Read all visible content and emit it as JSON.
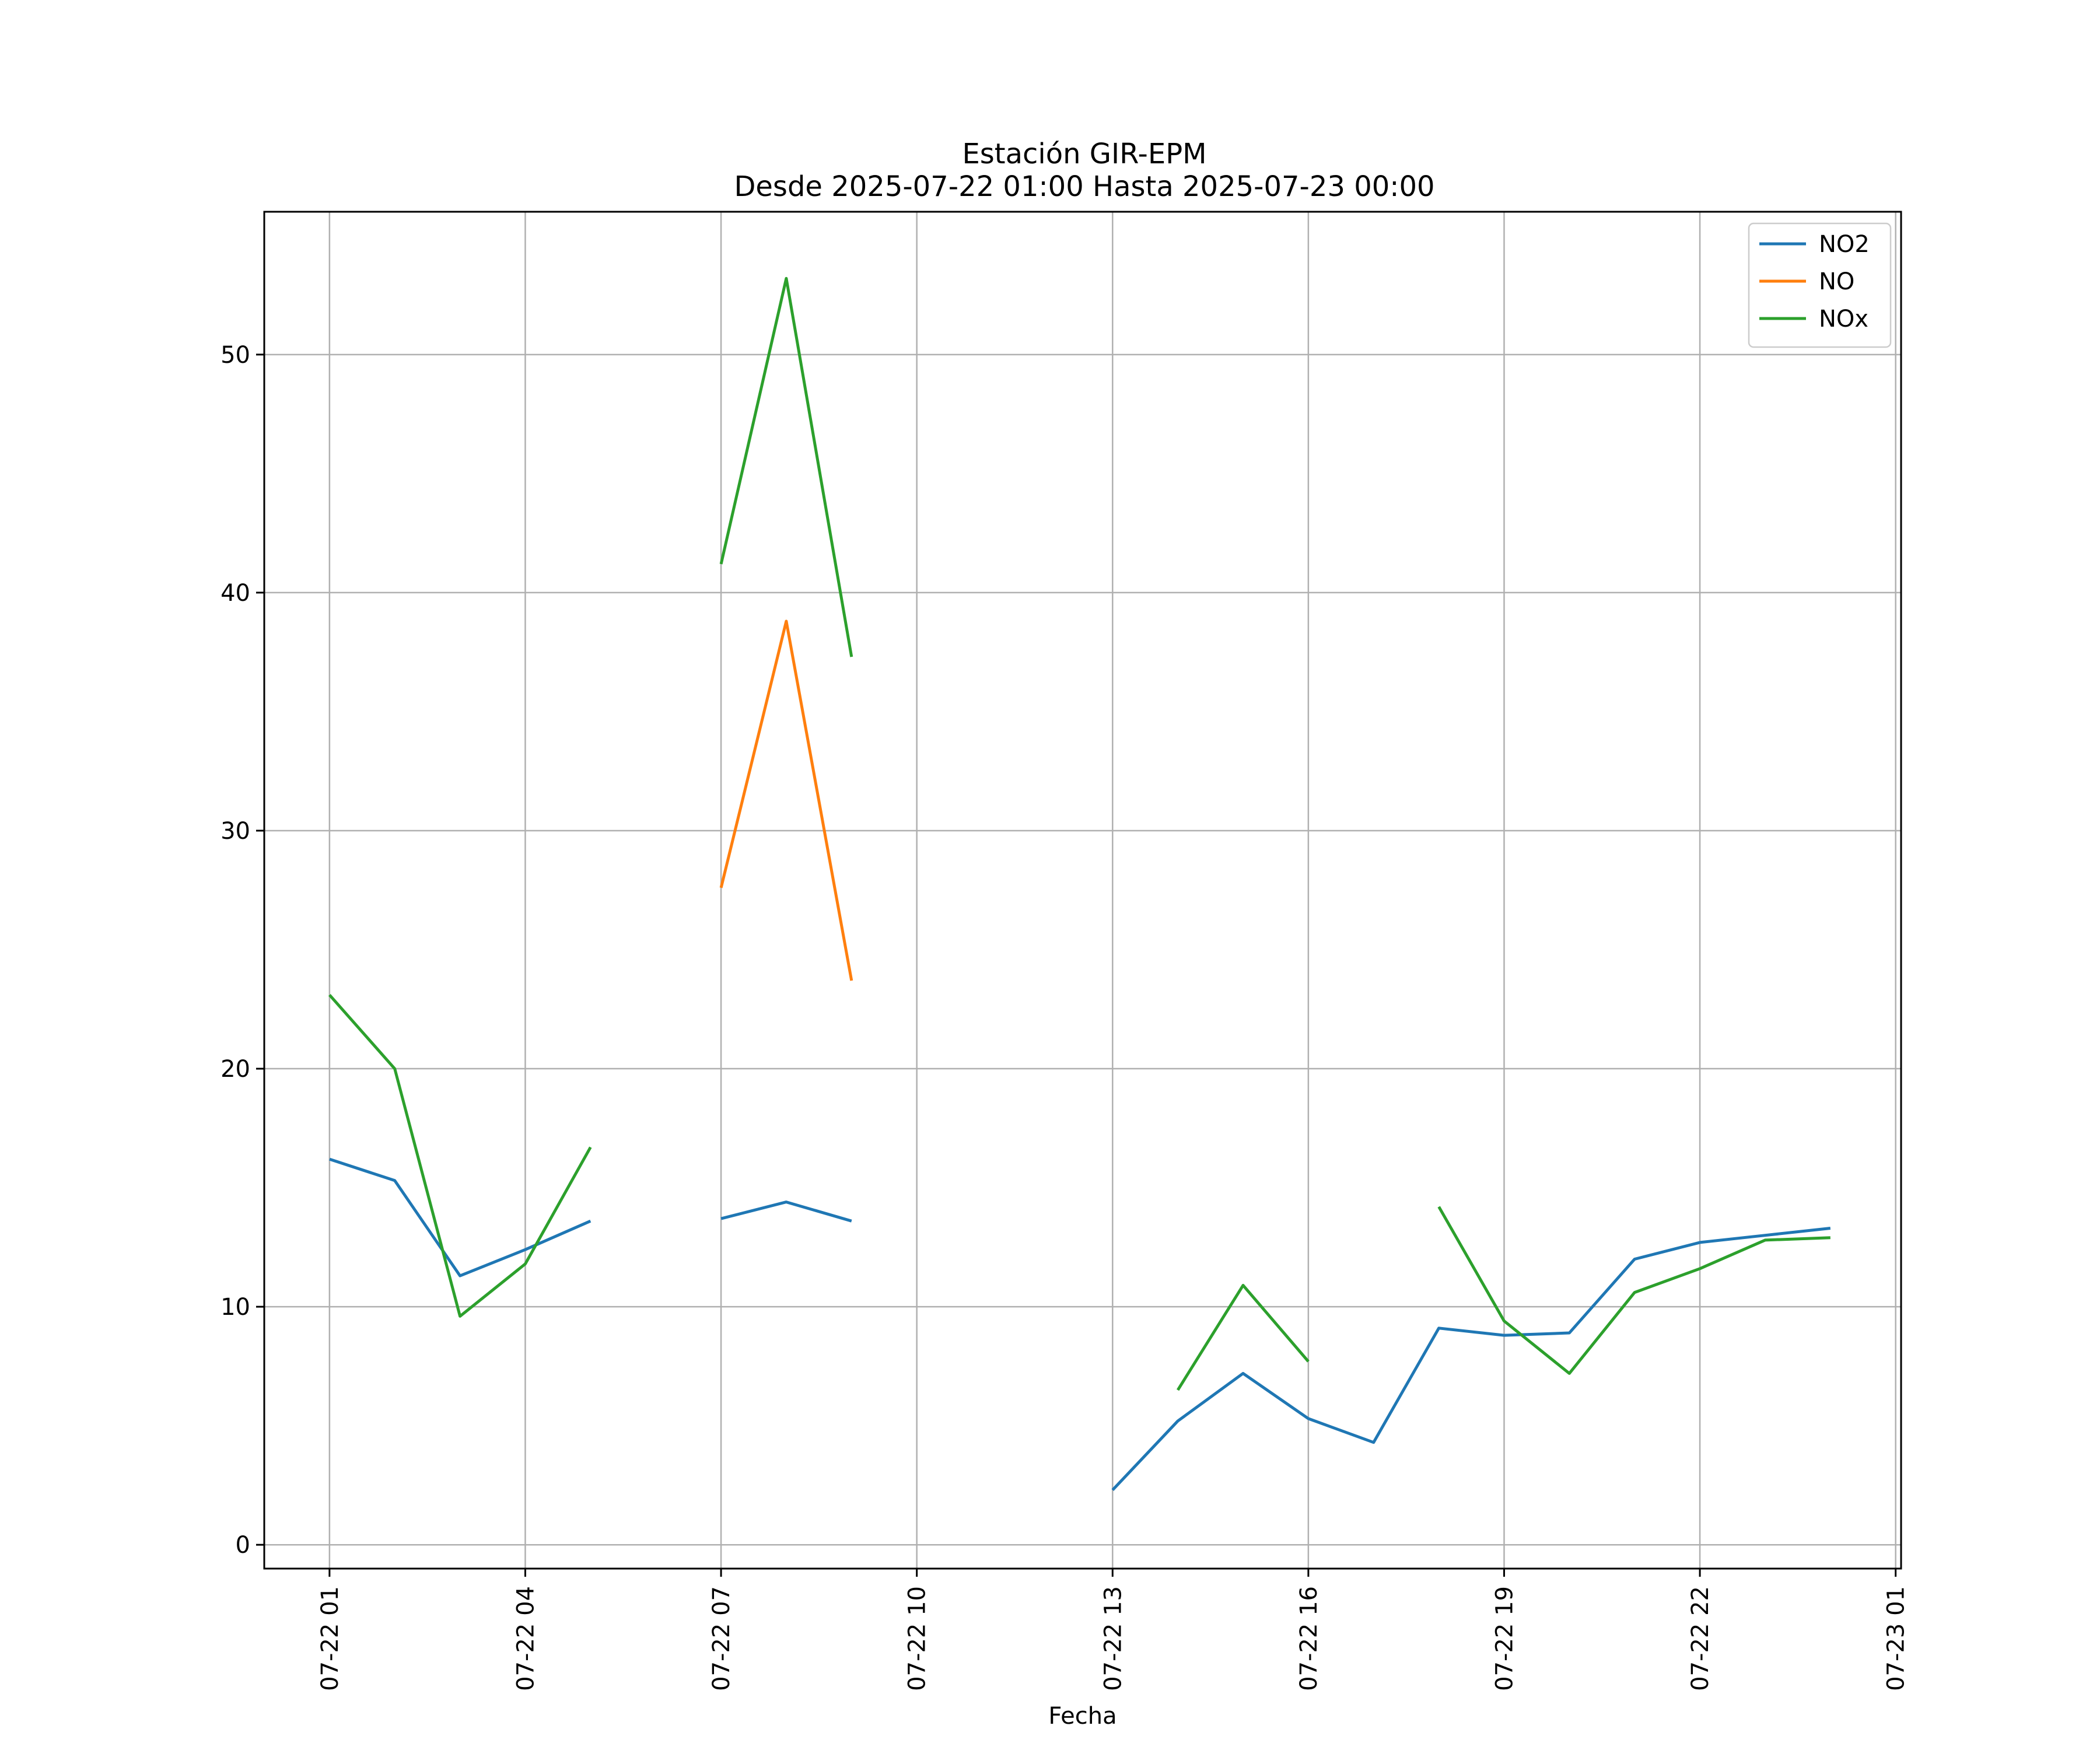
{
  "chart_data": {
    "type": "line",
    "title": "Estación GIR-EPM",
    "subtitle": "Desde 2025-07-22 01:00 Hasta 2025-07-23 00:00",
    "xlabel": "Fecha",
    "ylabel": "",
    "x": [
      "2025-07-22 01:00",
      "2025-07-22 02:00",
      "2025-07-22 03:00",
      "2025-07-22 04:00",
      "2025-07-22 05:00",
      "2025-07-22 06:00",
      "2025-07-22 07:00",
      "2025-07-22 08:00",
      "2025-07-22 09:00",
      "2025-07-22 10:00",
      "2025-07-22 11:00",
      "2025-07-22 12:00",
      "2025-07-22 13:00",
      "2025-07-22 14:00",
      "2025-07-22 15:00",
      "2025-07-22 16:00",
      "2025-07-22 17:00",
      "2025-07-22 18:00",
      "2025-07-22 19:00",
      "2025-07-22 20:00",
      "2025-07-22 21:00",
      "2025-07-22 22:00",
      "2025-07-22 23:00",
      "2025-07-23 00:00"
    ],
    "x_tick_labels": [
      "07-22 01",
      "07-22 04",
      "07-22 07",
      "07-22 10",
      "07-22 13",
      "07-22 16",
      "07-22 19",
      "07-22 22",
      "07-23 01"
    ],
    "y_ticks": [
      0,
      10,
      20,
      30,
      40,
      50
    ],
    "xlim": [
      "2025-07-22 00:00",
      "2025-07-23 01:05"
    ],
    "ylim": [
      -1,
      56
    ],
    "grid": true,
    "legend_position": "top-right",
    "series": [
      {
        "name": "NO2",
        "color": "#1f77b4",
        "values": [
          16.2,
          15.3,
          11.3,
          12.4,
          13.6,
          null,
          13.7,
          14.4,
          13.6,
          null,
          null,
          null,
          2.3,
          5.2,
          7.2,
          5.3,
          4.3,
          9.1,
          8.8,
          8.9,
          12.0,
          12.7,
          13.0,
          13.3
        ]
      },
      {
        "name": "NO",
        "color": "#ff7f0e",
        "values": [
          null,
          null,
          null,
          null,
          null,
          null,
          27.6,
          38.8,
          23.7,
          null,
          null,
          null,
          null,
          null,
          null,
          null,
          null,
          null,
          null,
          null,
          null,
          null,
          null,
          null
        ]
      },
      {
        "name": "NOx",
        "color": "#2ca02c",
        "values": [
          23.1,
          20.0,
          9.6,
          11.8,
          16.7,
          null,
          41.2,
          53.2,
          37.3,
          null,
          null,
          null,
          null,
          6.5,
          10.9,
          7.7,
          null,
          14.2,
          9.4,
          7.2,
          10.6,
          11.6,
          12.8,
          12.9
        ]
      }
    ]
  }
}
